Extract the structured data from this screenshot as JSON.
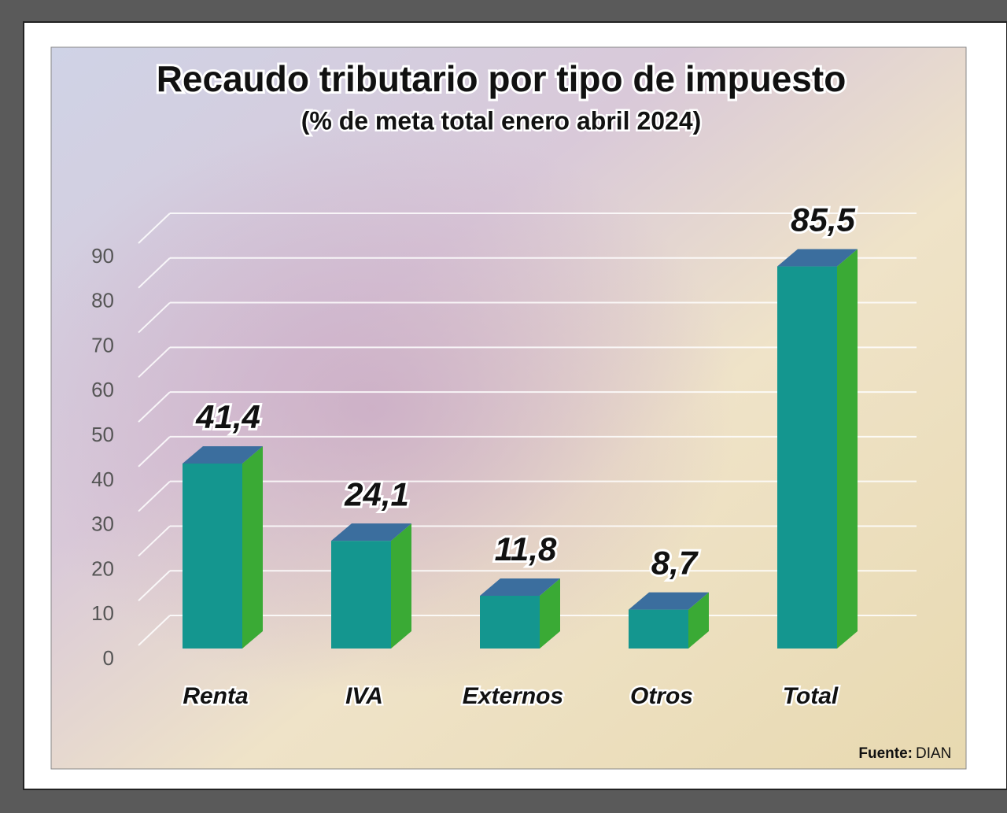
{
  "chart_data": {
    "type": "bar3d",
    "title": "Recaudo tributario por tipo de impuesto",
    "subtitle": "(% de meta total enero abril 2024)",
    "categories": [
      "Renta",
      "IVA",
      "Externos",
      "Otros",
      "Total"
    ],
    "values": [
      41.4,
      24.1,
      11.8,
      8.7,
      85.5
    ],
    "value_labels": [
      "41,4",
      "24,1",
      "11,8",
      "8,7",
      "85,5"
    ],
    "color": "#14968f",
    "ylim": [
      0,
      90
    ],
    "yticks": [
      0,
      10,
      20,
      30,
      40,
      50,
      60,
      70,
      80,
      90
    ],
    "grid": true,
    "source_label": "Fuente:",
    "source": "DIAN"
  }
}
